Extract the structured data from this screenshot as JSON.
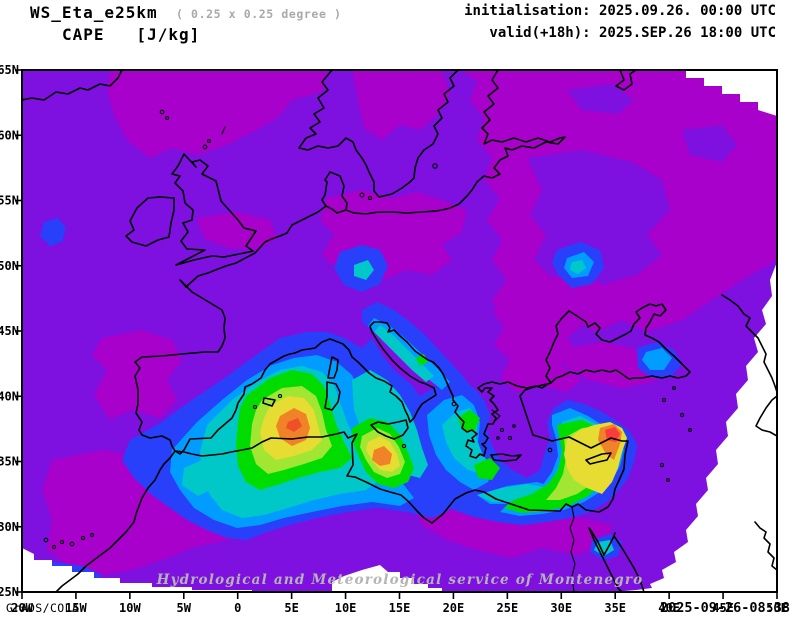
{
  "header": {
    "model": "WS_Eta_e25km",
    "resolution": "( 0.25 x 0.25 degree )",
    "variable": "CAPE   [J/kg]",
    "init_line": "initialisation: 2025.09.26. 00:00 UTC",
    "valid_line": "valid(+18h): 2025.SEP.26 18:00 UTC"
  },
  "footer": {
    "credit": "GrADS/COLA",
    "timestamp": "2025-09-26-08:38"
  },
  "watermark": "Hydrological and Meteorological service of Montenegro",
  "axes": {
    "x": {
      "ticks": [
        "20W",
        "15W",
        "10W",
        "5W",
        "0",
        "5E",
        "10E",
        "15E",
        "20E",
        "25E",
        "30E",
        "35E",
        "40E",
        "45E",
        "50E"
      ]
    },
    "y": {
      "ticks": [
        "65N",
        "60N",
        "55N",
        "50N",
        "45N",
        "40N",
        "35N",
        "30N",
        "25N"
      ]
    }
  },
  "map": {
    "extent": {
      "lon_min": "20W",
      "lon_max": "50E",
      "lat_min": "25N",
      "lat_max": "65N"
    },
    "field": "CAPE",
    "units": "J/kg",
    "high_cape_regions": "Balearic Sea, Tunisia coast, eastern Mediterranean near Cyprus/Syria",
    "low_cape_fill": "purple/magenta over most of Europe and inland Africa"
  },
  "colors": {
    "purple": "#7E10E0",
    "magenta": "#A801CB",
    "blue": "#2840FA",
    "azure": "#009CFF",
    "cyan": "#00C8C8",
    "green": "#00DC00",
    "lightgreen": "#A0E632",
    "yellow": "#E6DC32",
    "orange": "#F08228",
    "redorange": "#F05028",
    "red": "#FA3C3C"
  }
}
